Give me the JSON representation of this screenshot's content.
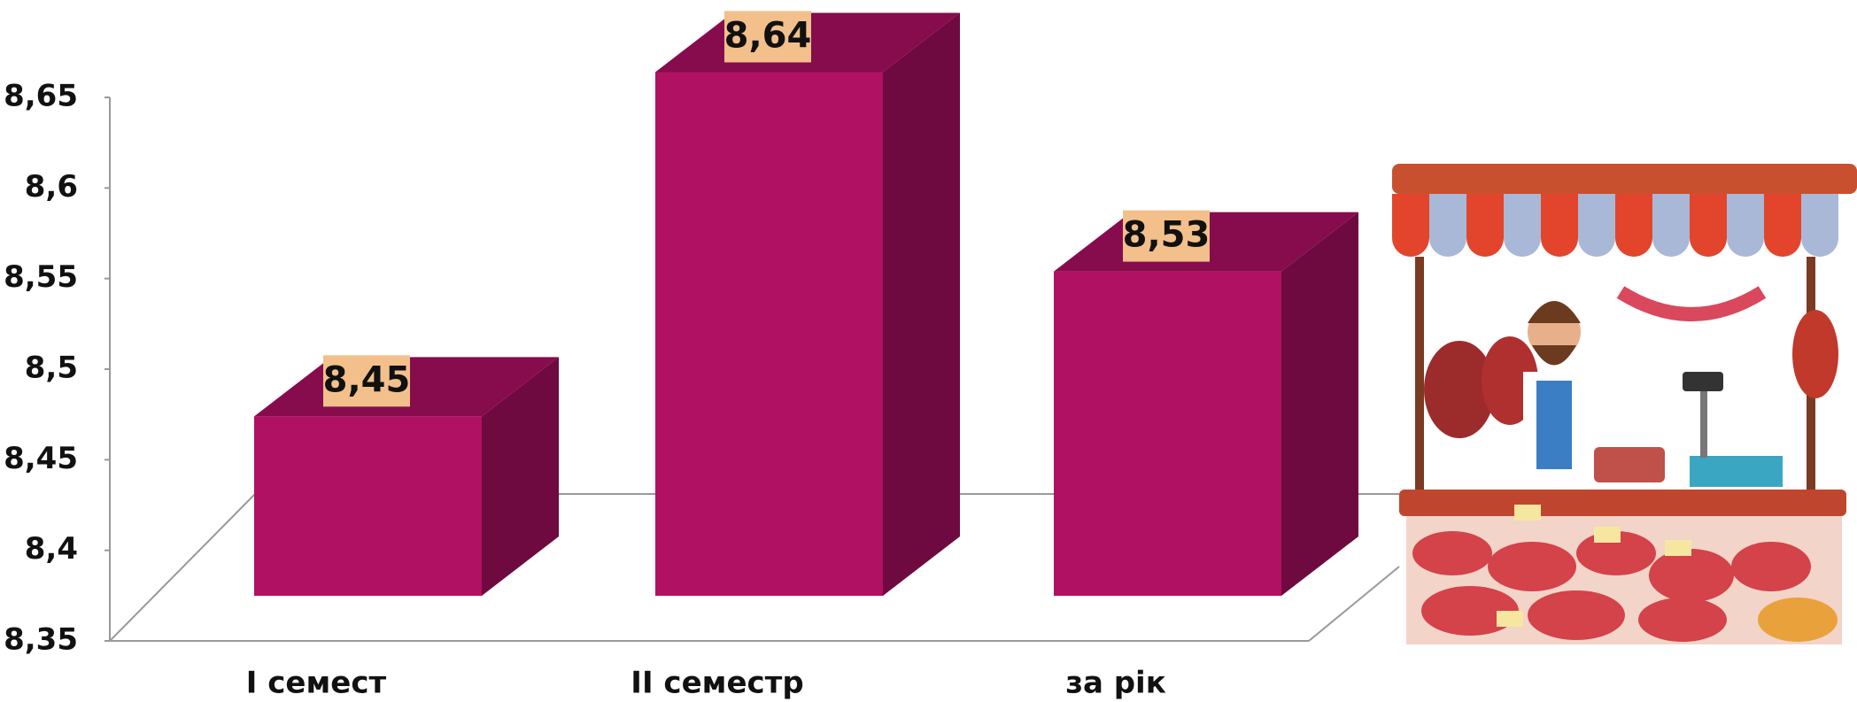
{
  "chart_data": {
    "type": "bar",
    "categories": [
      "I семест",
      "II семестр",
      "за рік"
    ],
    "values": [
      8.45,
      8.64,
      8.53
    ],
    "value_labels": [
      "8,45",
      "8,64",
      "8,53"
    ],
    "color": "#b01162",
    "ylim": [
      8.35,
      8.65
    ],
    "yticks": [
      {
        "value": 8.35,
        "label": "8,35"
      },
      {
        "value": 8.4,
        "label": "8,4"
      },
      {
        "value": 8.45,
        "label": "8,45"
      },
      {
        "value": 8.5,
        "label": "8,5"
      },
      {
        "value": 8.55,
        "label": "8,55"
      },
      {
        "value": 8.6,
        "label": "8,6"
      },
      {
        "value": 8.65,
        "label": "8,65"
      }
    ]
  }
}
